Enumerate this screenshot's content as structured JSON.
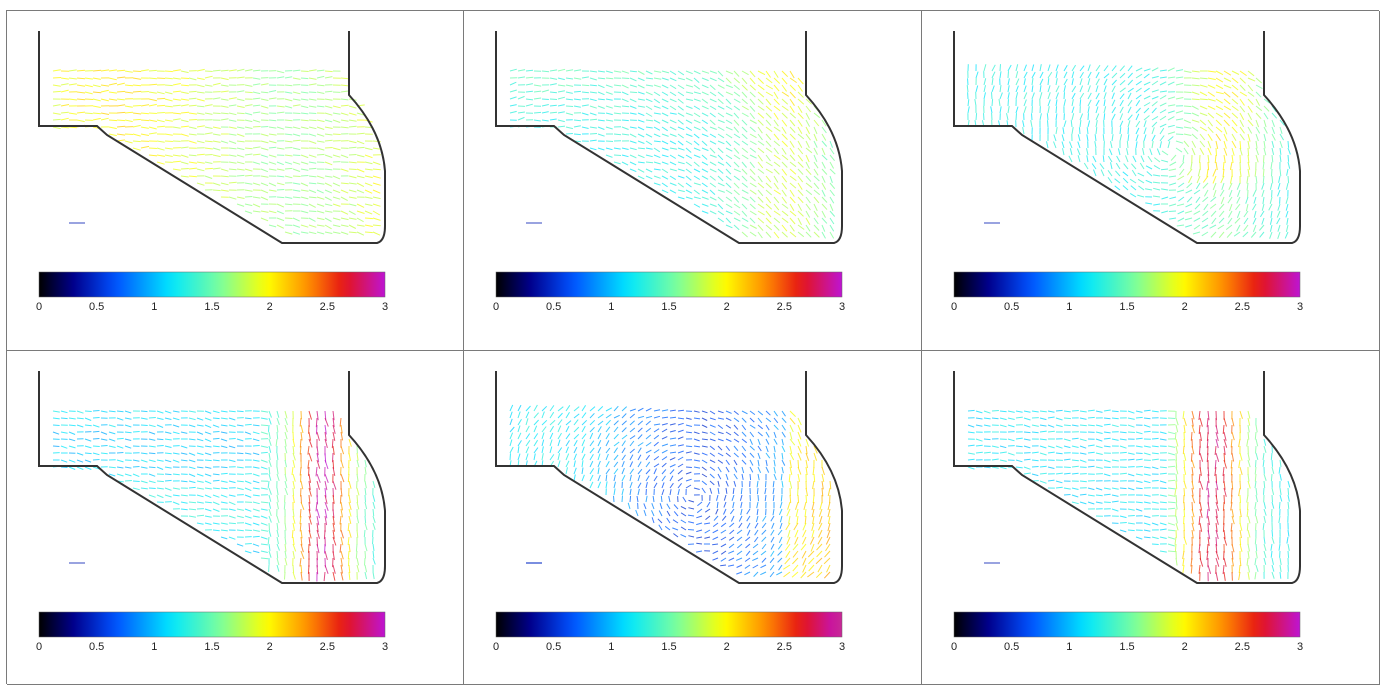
{
  "chart_data": [
    {
      "type": "quiver",
      "panel": "row1-col1",
      "colorbar": {
        "range": [
          0,
          3
        ],
        "ticks": [
          "0",
          "0.5",
          "1",
          "1.5",
          "2",
          "2.5",
          "3"
        ],
        "colormap": "jet-magenta"
      },
      "field": "uniform flow left to right, speed about 1.6–2.0"
    },
    {
      "type": "quiver",
      "panel": "row1-col2",
      "colorbar": {
        "range": [
          0,
          3
        ],
        "ticks": [
          "0",
          "0.5",
          "1",
          "1.5",
          "2",
          "2.5",
          "3"
        ],
        "colormap": "jet-magenta"
      },
      "field": "flow turning downward toward outlet, speed about 1.2–2.0"
    },
    {
      "type": "quiver",
      "panel": "row1-col3",
      "colorbar": {
        "range": [
          0,
          3
        ],
        "ticks": [
          "0",
          "0.5",
          "1",
          "1.5",
          "2",
          "2.5",
          "3"
        ],
        "colormap": "jet-magenta"
      },
      "field": "swirling flow, speed about 1.0–2.1"
    },
    {
      "type": "quiver",
      "panel": "row2-col1",
      "colorbar": {
        "range": [
          0,
          3
        ],
        "ticks": [
          "0",
          "0.5",
          "1",
          "1.5",
          "2",
          "2.5",
          "3"
        ],
        "colormap": "jet-magenta"
      },
      "field": "strong downward jet near right wall, speed up to about 3"
    },
    {
      "type": "quiver",
      "panel": "row2-col2",
      "colorbar": {
        "range": [
          0,
          3
        ],
        "ticks": [
          "0",
          "0.5",
          "1",
          "1.5",
          "2",
          "2.5",
          "3"
        ],
        "colormap": "jet"
      },
      "field": "recirculating flow, speed about 0.6–2.2"
    },
    {
      "type": "quiver",
      "panel": "row2-col3",
      "colorbar": {
        "range": [
          0,
          3
        ],
        "ticks": [
          "0",
          "0.5",
          "1",
          "1.5",
          "2",
          "2.5",
          "3"
        ],
        "colormap": "jet-magenta"
      },
      "field": "strong downward jet, speed up to about 3"
    }
  ]
}
